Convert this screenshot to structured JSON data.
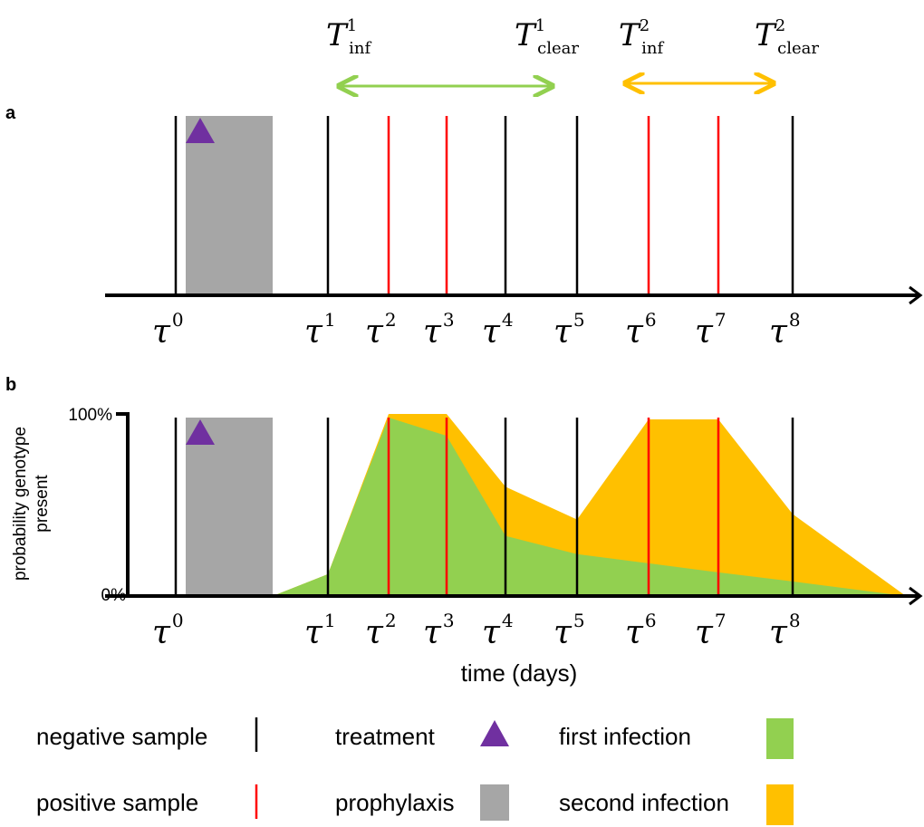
{
  "panels": {
    "a": {
      "label": "a"
    },
    "b": {
      "label": "b",
      "ylabel_line1": "probability genotype",
      "ylabel_line2": "present",
      "y_top_label": "100%",
      "y_bottom_label": "0%",
      "xlabel": "time (days)"
    }
  },
  "sample_times": [
    {
      "name": "τ0",
      "base": "τ",
      "sup": "0",
      "type": "negative"
    },
    {
      "name": "τ1",
      "base": "τ",
      "sup": "1",
      "type": "negative"
    },
    {
      "name": "τ2",
      "base": "τ",
      "sup": "2",
      "type": "positive"
    },
    {
      "name": "τ3",
      "base": "τ",
      "sup": "3",
      "type": "positive"
    },
    {
      "name": "τ4",
      "base": "τ",
      "sup": "4",
      "type": "negative"
    },
    {
      "name": "τ5",
      "base": "τ",
      "sup": "5",
      "type": "negative"
    },
    {
      "name": "τ6",
      "base": "τ",
      "sup": "6",
      "type": "positive"
    },
    {
      "name": "τ7",
      "base": "τ",
      "sup": "7",
      "type": "positive"
    },
    {
      "name": "τ8",
      "base": "τ",
      "sup": "8",
      "type": "negative"
    }
  ],
  "infection_intervals": [
    {
      "base": "T",
      "start_sub": "inf",
      "start_sup": "1",
      "end_sub": "clear",
      "end_sup": "1",
      "color": "#92d050"
    },
    {
      "base": "T",
      "start_sub": "inf",
      "start_sup": "2",
      "end_sub": "clear",
      "end_sup": "2",
      "color": "#ffc000"
    }
  ],
  "legend": {
    "negative_sample": "negative sample",
    "positive_sample": "positive sample",
    "treatment": "treatment",
    "prophylaxis": "prophylaxis",
    "first_infection": "first infection",
    "second_infection": "second infection"
  },
  "colors": {
    "negative": "#000000",
    "positive": "#ff0000",
    "prophylaxis": "#a6a6a6",
    "treatment": "#7030a0",
    "first_infection": "#92d050",
    "second_infection": "#ffc000"
  },
  "chart_data": {
    "type": "area",
    "y_unit": "probability genotype present (%)",
    "ylim": [
      0,
      100
    ],
    "series": [
      {
        "name": "first infection",
        "values": [
          0,
          12,
          98,
          88,
          33,
          23,
          18,
          13,
          8,
          0
        ]
      },
      {
        "name": "second infection",
        "values": [
          0,
          12,
          100,
          100,
          60,
          42,
          97,
          97,
          45,
          0
        ]
      }
    ]
  }
}
